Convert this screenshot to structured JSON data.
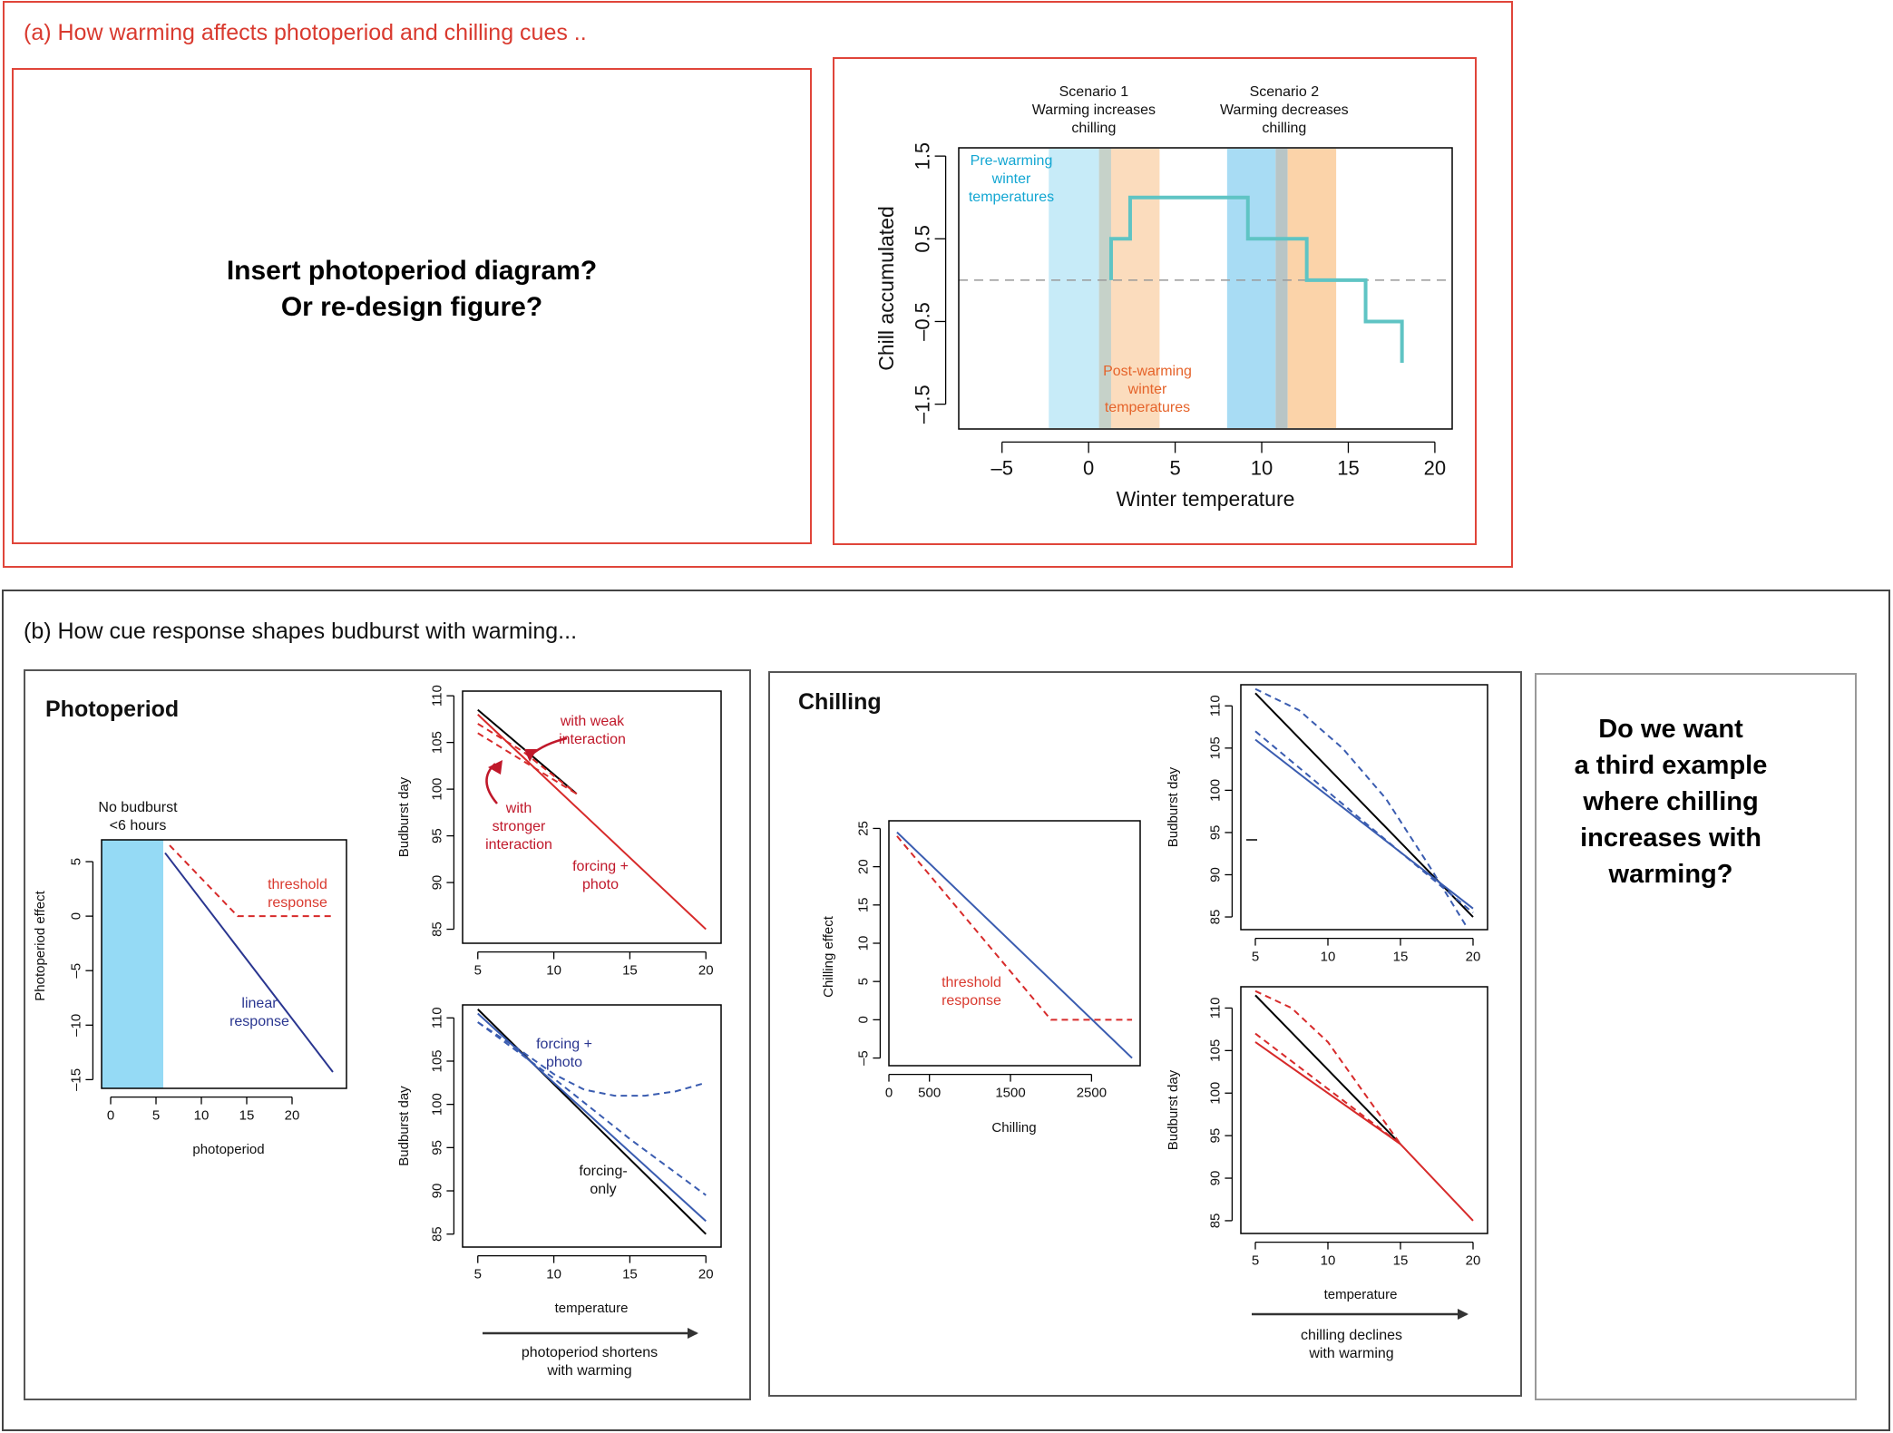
{
  "panel_a": {
    "header": "(a) How warming affects photoperiod and chilling cues ..",
    "placeholder_text": [
      "Insert photoperiod diagram?",
      "Or re-design figure?"
    ]
  },
  "panel_b": {
    "header": "(b) How cue response shapes budburst with warming...",
    "photoperiod_title": "Photoperiod",
    "chilling_title": "Chilling",
    "question_text": [
      "Do we want",
      "a third example",
      "where chilling",
      "increases with",
      "warming?"
    ],
    "photo_arrow_label": [
      "photoperiod shortens",
      "with warming"
    ],
    "chill_arrow_label": [
      "chilling declines",
      "with warming"
    ]
  },
  "colors": {
    "red_border": "#e0453a",
    "red_text": "#d93a2f",
    "dark_red": "#c0182a",
    "navy": "#2a3690",
    "steel_blue": "#3a5cb0",
    "teal": "#5fc4c4",
    "cyan": "#12a6d2",
    "orange_text": "#e5632a",
    "light_blue_band": "#bde8f8",
    "light_orange_band": "#fbdcbd",
    "shade_blue": "#95daf5"
  },
  "chart_data": [
    {
      "id": "chill-accumulated",
      "type": "line",
      "xlabel": "Winter temperature",
      "ylabel": "Chill accumulated",
      "xlim": [
        -7.5,
        21
      ],
      "ylim": [
        -1.8,
        1.6
      ],
      "xticks": [
        -5,
        0,
        5,
        10,
        15,
        20
      ],
      "xtick_labels": [
        "–5",
        "0",
        "5",
        "10",
        "15",
        "20"
      ],
      "yticks": [
        -1.5,
        -0.5,
        0.5,
        1.5
      ],
      "ytick_labels": [
        "–1.5",
        "–0.5",
        "0.5",
        "1.5"
      ],
      "step_x": [
        1.3,
        1.3,
        2.4,
        2.4,
        9.2,
        9.2,
        12.6,
        12.6,
        16.0,
        16.0,
        18.1,
        18.1
      ],
      "step_y": [
        0,
        0.5,
        0.5,
        1.0,
        1.0,
        0.5,
        0.5,
        0,
        0,
        -0.5,
        -0.5,
        -1.0
      ],
      "reference_y": 0,
      "bands": [
        {
          "x0": -2.3,
          "x1": 0.6,
          "color": "#c7ebf8"
        },
        {
          "x0": 0.6,
          "x1": 1.3,
          "color": "#c6d2c9"
        },
        {
          "x0": 1.3,
          "x1": 4.1,
          "color": "#fbdcbd"
        },
        {
          "x0": 8.0,
          "x1": 10.8,
          "color": "#a8dcf4"
        },
        {
          "x0": 10.8,
          "x1": 11.5,
          "color": "#b8c5c6"
        },
        {
          "x0": 11.5,
          "x1": 14.3,
          "color": "#fbd3a9"
        }
      ],
      "scenario_labels": [
        {
          "lines": [
            "Scenario 1",
            "Warming increases",
            "chilling"
          ],
          "x": 0.3
        },
        {
          "lines": [
            "Scenario 2",
            "Warming decreases",
            "chilling"
          ],
          "x": 11.3
        }
      ],
      "annotations": {
        "pre": [
          "Pre-warming",
          "winter",
          "temperatures"
        ],
        "post": [
          "Post-warming",
          "winter",
          "temperatures"
        ]
      }
    },
    {
      "id": "photoperiod-effect",
      "type": "line",
      "xlabel": "photoperiod",
      "ylabel": "Photoperiod effect",
      "xlim": [
        -1,
        26
      ],
      "ylim": [
        -15.8,
        7
      ],
      "xticks": [
        0,
        5,
        10,
        15,
        20
      ],
      "yticks": [
        -15,
        -10,
        -5,
        0,
        5
      ],
      "ytick_labels": [
        "–15",
        "–10",
        "–5",
        "0",
        "5"
      ],
      "shade_x": [
        -1,
        5.8
      ],
      "shade_label": [
        "No budburst",
        "<6 hours"
      ],
      "series": [
        {
          "name": "linear response",
          "style": "solid",
          "color": "#2a3690",
          "x": [
            6.0,
            24.5
          ],
          "y": [
            5.8,
            -14.3
          ]
        },
        {
          "name": "threshold response",
          "style": "dashed",
          "color": "#d72a2a",
          "x": [
            6.5,
            14.0,
            24.5
          ],
          "y": [
            6.5,
            0,
            0
          ]
        }
      ],
      "labels": {
        "threshold": [
          "threshold",
          "response"
        ],
        "linear": [
          "linear",
          "response"
        ]
      }
    },
    {
      "id": "photo-budburst-top",
      "type": "line",
      "ylabel": "Budburst day",
      "xlim": [
        4,
        21
      ],
      "ylim": [
        83.5,
        110.5
      ],
      "xticks": [
        5,
        10,
        15,
        20
      ],
      "yticks": [
        85,
        90,
        95,
        100,
        105,
        110
      ],
      "series": [
        {
          "name": "",
          "style": "solid",
          "color": "#000000",
          "x": [
            5,
            11.5
          ],
          "y": [
            108.5,
            99.5
          ]
        },
        {
          "name": "forcing + photo",
          "style": "solid",
          "color": "#d72a2a",
          "x": [
            5,
            20
          ],
          "y": [
            108,
            85
          ]
        },
        {
          "name": "with weak interaction",
          "style": "dashed",
          "color": "#d72a2a",
          "x": [
            5,
            8,
            11.5
          ],
          "y": [
            107,
            104,
            99.5
          ]
        },
        {
          "name": "with stronger interaction",
          "style": "dashed",
          "color": "#d72a2a",
          "x": [
            5,
            8.5,
            11.5
          ],
          "y": [
            106,
            102.5,
            99.5
          ]
        }
      ],
      "labels": {
        "weak": [
          "with weak",
          "interaction"
        ],
        "stronger": [
          "with",
          "stronger",
          "interaction"
        ],
        "forcing_photo": [
          "forcing +",
          "photo"
        ]
      }
    },
    {
      "id": "photo-budburst-bottom",
      "type": "line",
      "xlabel": "temperature",
      "ylabel": "Budburst day",
      "xlim": [
        4,
        21
      ],
      "ylim": [
        83.5,
        111.5
      ],
      "xticks": [
        5,
        10,
        15,
        20
      ],
      "yticks": [
        85,
        90,
        95,
        100,
        105,
        110
      ],
      "series": [
        {
          "name": "forcing-only",
          "style": "solid",
          "color": "#000000",
          "x": [
            5,
            20
          ],
          "y": [
            111,
            85
          ]
        },
        {
          "name": "forcing + photo",
          "style": "solid",
          "color": "#3a5cb0",
          "x": [
            5,
            20
          ],
          "y": [
            110.5,
            86.5
          ]
        },
        {
          "name": "",
          "style": "dashed",
          "color": "#3a5cb0",
          "x": [
            5,
            8,
            10,
            12,
            14,
            16,
            18,
            20
          ],
          "y": [
            109.5,
            106,
            103.5,
            101.7,
            101,
            101,
            101.5,
            102.5
          ]
        },
        {
          "name": "",
          "style": "dashed",
          "color": "#3a5cb0",
          "x": [
            5,
            10,
            15,
            20
          ],
          "y": [
            109.5,
            103,
            96,
            89.5
          ]
        }
      ],
      "labels": {
        "forcing_photo": [
          "forcing +",
          "photo"
        ],
        "forcing_only": [
          "forcing-",
          "only"
        ]
      }
    },
    {
      "id": "chilling-effect",
      "type": "line",
      "xlabel": "Chilling",
      "ylabel": "Chilling effect",
      "xlim": [
        0,
        3100
      ],
      "ylim": [
        -6,
        26
      ],
      "xticks": [
        0,
        500,
        1500,
        2500
      ],
      "yticks": [
        -5,
        0,
        5,
        10,
        15,
        20,
        25
      ],
      "ytick_labels": [
        "–5",
        "0",
        "5",
        "10",
        "15",
        "20",
        "25"
      ],
      "series": [
        {
          "name": "",
          "style": "solid",
          "color": "#3a5cb0",
          "x": [
            100,
            3000
          ],
          "y": [
            24.5,
            -5
          ]
        },
        {
          "name": "threshold response",
          "style": "dashed",
          "color": "#d72a2a",
          "x": [
            100,
            2000,
            3000
          ],
          "y": [
            24,
            0,
            0
          ]
        }
      ],
      "labels": {
        "threshold": [
          "threshold",
          "response"
        ]
      }
    },
    {
      "id": "chill-budburst-top",
      "type": "line",
      "ylabel": "Budburst day",
      "xlim": [
        4,
        21
      ],
      "ylim": [
        83.5,
        112.5
      ],
      "xticks": [
        5,
        10,
        15,
        20
      ],
      "yticks": [
        85,
        90,
        95,
        100,
        105,
        110
      ],
      "series": [
        {
          "name": "",
          "style": "solid",
          "color": "#000000",
          "x": [
            5,
            20
          ],
          "y": [
            111.5,
            85
          ]
        },
        {
          "name": "",
          "style": "solid",
          "color": "#3a5cb0",
          "x": [
            5,
            20
          ],
          "y": [
            106,
            86
          ]
        },
        {
          "name": "",
          "style": "dashed",
          "color": "#3a5cb0",
          "x": [
            5,
            20
          ],
          "y": [
            107,
            85.5
          ]
        },
        {
          "name": "",
          "style": "dashed",
          "color": "#3a5cb0",
          "x": [
            5,
            8,
            11,
            14,
            17,
            19.5
          ],
          "y": [
            112,
            109.5,
            105,
            99,
            91,
            84
          ]
        }
      ]
    },
    {
      "id": "chill-budburst-bottom",
      "type": "line",
      "xlabel": "temperature",
      "ylabel": "Budburst day",
      "xlim": [
        4,
        21
      ],
      "ylim": [
        83.5,
        112.5
      ],
      "xticks": [
        5,
        10,
        15,
        20
      ],
      "yticks": [
        85,
        90,
        95,
        100,
        105,
        110
      ],
      "series": [
        {
          "name": "",
          "style": "solid",
          "color": "#000000",
          "x": [
            5,
            15
          ],
          "y": [
            111.5,
            94
          ]
        },
        {
          "name": "",
          "style": "solid",
          "color": "#d72a2a",
          "x": [
            5,
            15,
            20
          ],
          "y": [
            106,
            94,
            85
          ]
        },
        {
          "name": "",
          "style": "dashed",
          "color": "#d72a2a",
          "x": [
            5,
            15
          ],
          "y": [
            107,
            94
          ]
        },
        {
          "name": "",
          "style": "dashed",
          "color": "#d72a2a",
          "x": [
            5,
            7.5,
            10,
            12.5,
            15
          ],
          "y": [
            112,
            110,
            106,
            100,
            94
          ]
        }
      ]
    }
  ]
}
